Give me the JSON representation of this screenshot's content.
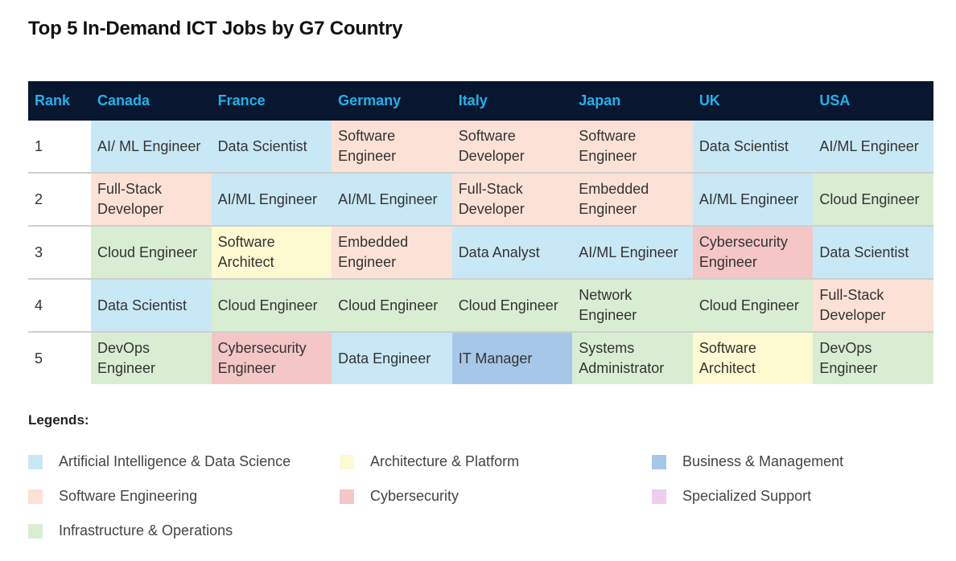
{
  "title": "Top 5 In-Demand ICT Jobs by G7 Country",
  "colors": {
    "ai": "#c9e8f5",
    "sw": "#fbe1d6",
    "infra": "#d9edd3",
    "arch": "#fdf9d1",
    "cyber": "#f5c6c6",
    "biz": "#a7c7e8",
    "spec": "#efcdef",
    "header_bg": "#081630",
    "header_text": "#1fb3ea"
  },
  "table": {
    "headers": [
      "Rank",
      "Canada",
      "France",
      "Germany",
      "Italy",
      "Japan",
      "UK",
      "USA"
    ],
    "rows": [
      {
        "rank": "1",
        "cells": [
          {
            "text": "AI/ ML Engineer",
            "cat": "ai"
          },
          {
            "text": "Data Scientist",
            "cat": "ai"
          },
          {
            "text": "Software Engineer",
            "cat": "sw"
          },
          {
            "text": "Software Developer",
            "cat": "sw"
          },
          {
            "text": "Software Engineer",
            "cat": "sw"
          },
          {
            "text": "Data Scientist",
            "cat": "ai"
          },
          {
            "text": "AI/ML Engineer",
            "cat": "ai"
          }
        ]
      },
      {
        "rank": "2",
        "cells": [
          {
            "text": "Full-Stack Developer",
            "cat": "sw"
          },
          {
            "text": "AI/ML Engineer",
            "cat": "ai"
          },
          {
            "text": "AI/ML Engineer",
            "cat": "ai"
          },
          {
            "text": "Full-Stack Developer",
            "cat": "sw"
          },
          {
            "text": "Embedded Engineer",
            "cat": "sw"
          },
          {
            "text": "AI/ML Engineer",
            "cat": "ai"
          },
          {
            "text": "Cloud Engineer",
            "cat": "infra"
          }
        ]
      },
      {
        "rank": "3",
        "cells": [
          {
            "text": "Cloud Engineer",
            "cat": "infra"
          },
          {
            "text": "Software Architect",
            "cat": "arch"
          },
          {
            "text": "Embedded Engineer",
            "cat": "sw"
          },
          {
            "text": "Data Analyst",
            "cat": "ai"
          },
          {
            "text": "AI/ML Engineer",
            "cat": "ai"
          },
          {
            "text": "Cybersecurity Engineer",
            "cat": "cyber"
          },
          {
            "text": "Data Scientist",
            "cat": "ai"
          }
        ]
      },
      {
        "rank": "4",
        "cells": [
          {
            "text": "Data Scientist",
            "cat": "ai"
          },
          {
            "text": "Cloud Engineer",
            "cat": "infra"
          },
          {
            "text": "Cloud Engineer",
            "cat": "infra"
          },
          {
            "text": "Cloud Engineer",
            "cat": "infra"
          },
          {
            "text": "Network Engineer",
            "cat": "infra"
          },
          {
            "text": "Cloud Engineer",
            "cat": "infra"
          },
          {
            "text": "Full-Stack Developer",
            "cat": "sw"
          }
        ]
      },
      {
        "rank": "5",
        "cells": [
          {
            "text": "DevOps Engineer",
            "cat": "infra"
          },
          {
            "text": "Cybersecurity Engineer",
            "cat": "cyber"
          },
          {
            "text": "Data Engineer",
            "cat": "ai"
          },
          {
            "text": "IT Manager",
            "cat": "biz"
          },
          {
            "text": "Systems Administrator",
            "cat": "infra"
          },
          {
            "text": "Software Architect",
            "cat": "arch"
          },
          {
            "text": "DevOps Engineer",
            "cat": "infra"
          }
        ]
      }
    ]
  },
  "legend": {
    "title": "Legends:",
    "items": [
      {
        "label": "Artificial Intelligence & Data Science",
        "cat": "ai"
      },
      {
        "label": "Software Engineering",
        "cat": "sw"
      },
      {
        "label": "Infrastructure & Operations",
        "cat": "infra"
      },
      {
        "label": "Architecture & Platform",
        "cat": "arch"
      },
      {
        "label": "Cybersecurity",
        "cat": "cyber"
      },
      {
        "label": "Business & Management",
        "cat": "biz"
      },
      {
        "label": "Specialized Support",
        "cat": "spec"
      }
    ]
  }
}
